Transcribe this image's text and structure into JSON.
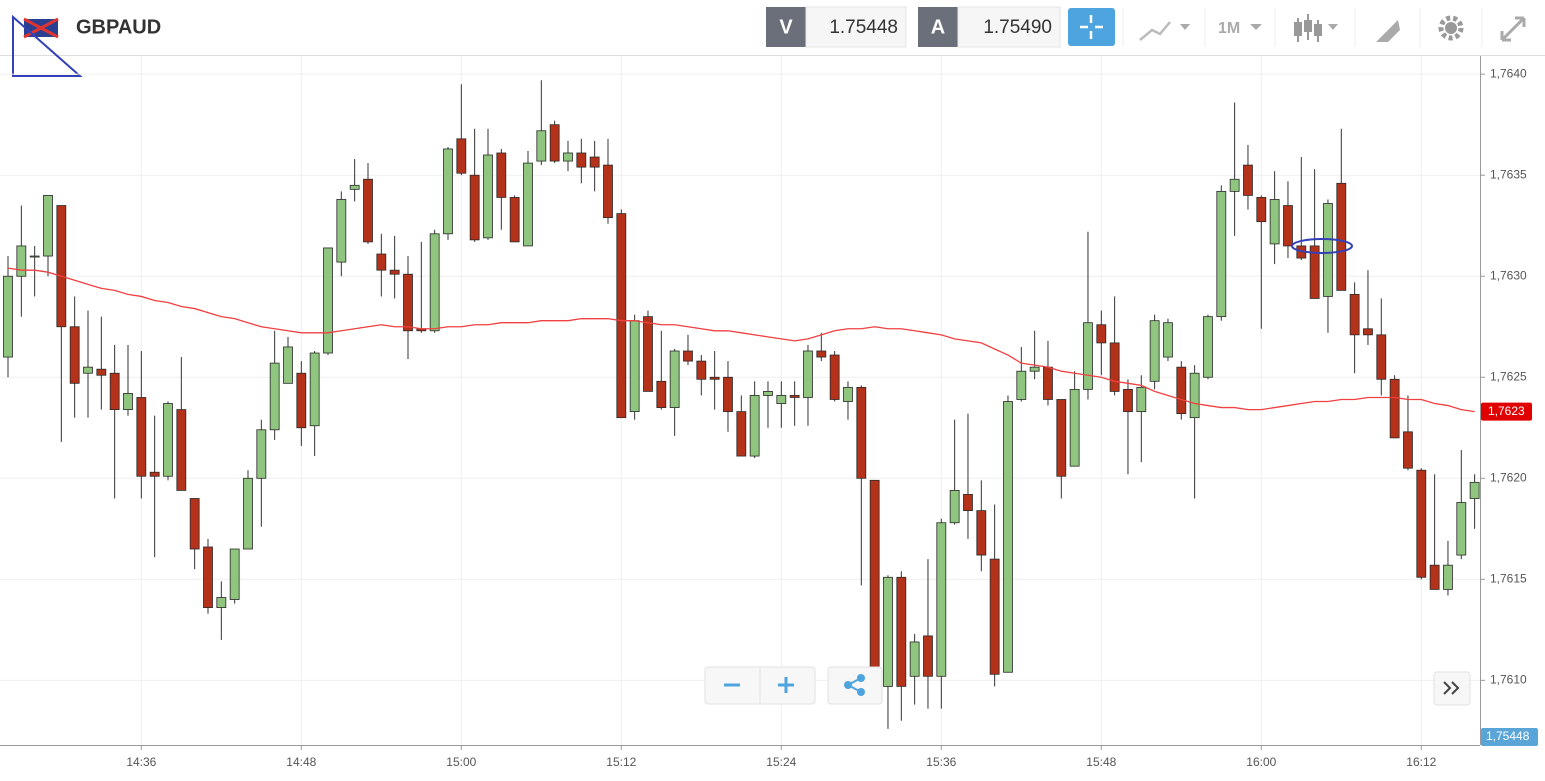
{
  "header": {
    "symbol": "GBPAUD",
    "sell_label": "V",
    "sell_price": "1.75448",
    "buy_label": "A",
    "buy_price": "1.75490",
    "timeframe": "1M"
  },
  "chart_data": {
    "type": "candlestick",
    "categories": [
      null,
      null,
      null,
      null,
      null,
      null,
      null,
      null,
      null,
      null,
      "14:36",
      null,
      null,
      null,
      null,
      null,
      null,
      null,
      null,
      null,
      null,
      null,
      "14:48",
      null,
      null,
      null,
      null,
      null,
      null,
      null,
      null,
      null,
      null,
      null,
      "15:00",
      null,
      null,
      null,
      null,
      null,
      null,
      null,
      null,
      null,
      null,
      null,
      "15:12",
      null,
      null,
      null,
      null,
      null,
      null,
      null,
      null,
      null,
      null,
      null,
      "15:24",
      null,
      null,
      null,
      null,
      null,
      null,
      null,
      null,
      null,
      null,
      null,
      "15:36",
      null,
      null,
      null,
      null,
      null,
      null,
      null,
      null,
      null,
      null,
      null,
      "15:48",
      null,
      null,
      null,
      null,
      null,
      null,
      null,
      null,
      null,
      null,
      null,
      "16:00",
      null,
      null,
      null,
      null,
      null,
      null,
      null,
      null,
      null,
      null,
      null,
      "16:12",
      null,
      null,
      null,
      null
    ],
    "open": [
      1.7626,
      1.763,
      1.7631,
      1.7631,
      1.76335,
      1.76275,
      1.76252,
      1.76254,
      1.76252,
      1.76234,
      1.7624,
      1.76203,
      1.76201,
      1.76234,
      1.7619,
      1.76166,
      1.76136,
      1.7614,
      1.76165,
      1.762,
      1.76224,
      1.76247,
      1.76252,
      1.76226,
      1.76262,
      1.76307,
      1.76343,
      1.76348,
      1.76311,
      1.76303,
      1.76301,
      1.76274,
      1.76273,
      1.76321,
      1.76368,
      1.7635,
      1.76319,
      1.76361,
      1.76339,
      1.76315,
      1.76357,
      1.76375,
      1.76357,
      1.76361,
      1.76359,
      1.76355,
      1.76331,
      1.76233,
      1.7628,
      1.76248,
      1.76235,
      1.76263,
      1.76258,
      1.7625,
      1.7625,
      1.76233,
      1.76211,
      1.76241,
      1.76237,
      1.76241,
      1.7624,
      1.76263,
      1.76261,
      1.76238,
      1.76245,
      1.76199,
      1.76097,
      1.76151,
      1.76102,
      1.76122,
      1.76102,
      1.76178,
      1.76192,
      1.76184,
      1.7616,
      1.76104,
      1.76239,
      1.76253,
      1.76255,
      1.76239,
      1.76206,
      1.76244,
      1.76276,
      1.76267,
      1.76244,
      1.76233,
      1.76248,
      1.7626,
      1.76255,
      1.7623,
      1.7625,
      1.7628,
      1.76342,
      1.76355,
      1.76339,
      1.76316,
      1.76335,
      1.76315,
      1.76315,
      1.7629,
      1.76346,
      1.76291,
      1.76274,
      1.76271,
      1.76249,
      1.76223,
      1.76204,
      1.76157,
      1.76145,
      1.76162,
      1.7619
    ],
    "high": [
      1.7631,
      1.76335,
      1.76315,
      1.7634,
      1.76335,
      1.7629,
      1.76283,
      1.7628,
      1.76266,
      1.76266,
      1.76263,
      1.76231,
      1.76238,
      1.7626,
      1.7619,
      1.7617,
      1.76149,
      1.76165,
      1.76204,
      1.76229,
      1.76273,
      1.7627,
      1.76258,
      1.76263,
      1.76314,
      1.76342,
      1.76358,
      1.76356,
      1.76321,
      1.7632,
      1.7631,
      1.76317,
      1.76323,
      1.76364,
      1.76395,
      1.76373,
      1.76373,
      1.76363,
      1.7634,
      1.76362,
      1.76397,
      1.76377,
      1.76367,
      1.76368,
      1.76367,
      1.76368,
      1.76333,
      1.76281,
      1.76283,
      1.76273,
      1.76264,
      1.76271,
      1.76261,
      1.76263,
      1.76258,
      1.76241,
      1.76248,
      1.76248,
      1.76248,
      1.76248,
      1.76266,
      1.76272,
      1.76263,
      1.76248,
      1.76246,
      1.76199,
      1.76152,
      1.76154,
      1.76123,
      1.7616,
      1.7618,
      1.76229,
      1.76232,
      1.76199,
      1.76187,
      1.76241,
      1.76265,
      1.76273,
      1.76268,
      1.76239,
      1.76253,
      1.76322,
      1.76283,
      1.7629,
      1.76249,
      1.76251,
      1.76281,
      1.76279,
      1.76258,
      1.76256,
      1.76281,
      1.76345,
      1.76386,
      1.76365,
      1.7634,
      1.76352,
      1.76347,
      1.76359,
      1.76353,
      1.76338,
      1.76373,
      1.76297,
      1.76303,
      1.76289,
      1.76251,
      1.76241,
      1.76205,
      1.76202,
      1.76169,
      1.76214,
      1.76202
    ],
    "low": [
      1.7625,
      1.7628,
      1.7629,
      1.763,
      1.76218,
      1.7623,
      1.7623,
      1.76234,
      1.7619,
      1.76231,
      1.7619,
      1.76161,
      1.76199,
      1.76194,
      1.76155,
      1.76133,
      1.7612,
      1.76138,
      1.76165,
      1.76176,
      1.76219,
      1.76247,
      1.76216,
      1.76211,
      1.76261,
      1.763,
      1.76337,
      1.76316,
      1.7629,
      1.76289,
      1.76259,
      1.76272,
      1.76272,
      1.76318,
      1.7635,
      1.76317,
      1.76318,
      1.76323,
      1.76317,
      1.76315,
      1.76355,
      1.76356,
      1.76352,
      1.76346,
      1.76342,
      1.76326,
      1.7623,
      1.76229,
      1.76243,
      1.76234,
      1.76221,
      1.76256,
      1.76241,
      1.76234,
      1.76223,
      1.76211,
      1.7621,
      1.76225,
      1.76225,
      1.76226,
      1.76226,
      1.76258,
      1.76238,
      1.76229,
      1.76147,
      1.761,
      1.76076,
      1.7608,
      1.76088,
      1.76086,
      1.76086,
      1.76177,
      1.7617,
      1.76154,
      1.76097,
      1.76104,
      1.76238,
      1.76249,
      1.76236,
      1.7619,
      1.76206,
      1.76239,
      1.76251,
      1.76241,
      1.76202,
      1.76208,
      1.76244,
      1.76258,
      1.76229,
      1.7619,
      1.76249,
      1.76278,
      1.7632,
      1.76333,
      1.76274,
      1.76306,
      1.76309,
      1.76308,
      1.76289,
      1.76272,
      1.76293,
      1.76252,
      1.76266,
      1.76241,
      1.7622,
      1.76204,
      1.7615,
      1.76145,
      1.76142,
      1.7616,
      1.76175
    ],
    "close": [
      1.763,
      1.76315,
      1.7631,
      1.7634,
      1.76275,
      1.76247,
      1.76255,
      1.76251,
      1.76234,
      1.76242,
      1.76201,
      1.76201,
      1.76237,
      1.76194,
      1.76165,
      1.76136,
      1.76141,
      1.76165,
      1.762,
      1.76224,
      1.76257,
      1.76265,
      1.76225,
      1.76262,
      1.76314,
      1.76338,
      1.76345,
      1.76317,
      1.76303,
      1.76301,
      1.76273,
      1.76273,
      1.76321,
      1.76363,
      1.76351,
      1.76318,
      1.7636,
      1.76339,
      1.76317,
      1.76356,
      1.76372,
      1.76357,
      1.76361,
      1.76354,
      1.76354,
      1.76329,
      1.7623,
      1.76278,
      1.76243,
      1.76235,
      1.76263,
      1.76258,
      1.76249,
      1.76249,
      1.76233,
      1.76211,
      1.76241,
      1.76243,
      1.76241,
      1.7624,
      1.76263,
      1.7626,
      1.76239,
      1.76245,
      1.762,
      1.761,
      1.76151,
      1.76097,
      1.76119,
      1.76102,
      1.76178,
      1.76194,
      1.76184,
      1.76162,
      1.76103,
      1.76238,
      1.76253,
      1.76255,
      1.76239,
      1.76201,
      1.76244,
      1.76277,
      1.76267,
      1.76243,
      1.76233,
      1.76245,
      1.76278,
      1.76277,
      1.76232,
      1.76252,
      1.7628,
      1.76342,
      1.76348,
      1.7634,
      1.76327,
      1.76338,
      1.76315,
      1.76309,
      1.76289,
      1.76336,
      1.76293,
      1.76271,
      1.76271,
      1.76249,
      1.7622,
      1.76205,
      1.76151,
      1.76145,
      1.76157,
      1.76188,
      1.76198
    ],
    "up_color": "#8fc57f",
    "down_color": "#b5321a",
    "ma": {
      "color": "#f04040",
      "label": "1,7623",
      "values": [
        1.76304,
        1.76303,
        1.76303,
        1.76302,
        1.763,
        1.76298,
        1.76296,
        1.76294,
        1.76293,
        1.76291,
        1.7629,
        1.76288,
        1.76287,
        1.76285,
        1.76284,
        1.76282,
        1.7628,
        1.76279,
        1.76277,
        1.76275,
        1.76274,
        1.76273,
        1.76272,
        1.76272,
        1.76272,
        1.76273,
        1.76274,
        1.76275,
        1.76276,
        1.76275,
        1.76275,
        1.76274,
        1.76274,
        1.76275,
        1.76275,
        1.76276,
        1.76276,
        1.76277,
        1.76277,
        1.76277,
        1.76278,
        1.76278,
        1.76278,
        1.76279,
        1.76279,
        1.76279,
        1.76278,
        1.76278,
        1.76277,
        1.76276,
        1.76276,
        1.76275,
        1.76274,
        1.76273,
        1.76273,
        1.76272,
        1.76271,
        1.7627,
        1.76269,
        1.76268,
        1.76269,
        1.76271,
        1.76273,
        1.76274,
        1.76274,
        1.76275,
        1.76274,
        1.76274,
        1.76273,
        1.76272,
        1.76271,
        1.76269,
        1.76268,
        1.76267,
        1.76264,
        1.76261,
        1.76257,
        1.76256,
        1.76255,
        1.76253,
        1.76252,
        1.76251,
        1.7625,
        1.76248,
        1.76247,
        1.76246,
        1.76243,
        1.76241,
        1.76239,
        1.76237,
        1.76236,
        1.76235,
        1.76235,
        1.76234,
        1.76234,
        1.76235,
        1.76236,
        1.76237,
        1.76238,
        1.76238,
        1.76239,
        1.76239,
        1.7624,
        1.7624,
        1.7624,
        1.76239,
        1.76239,
        1.76237,
        1.76236,
        1.76234,
        1.76233
      ]
    },
    "bid_label": "1,75448",
    "ylim": [
      1.76068,
      1.76409
    ],
    "yticks": [
      {
        "value": 1.761,
        "label": "1,7610"
      },
      {
        "value": 1.7615,
        "label": "1,7615"
      },
      {
        "value": 1.762,
        "label": "1,7620"
      },
      {
        "value": 1.7625,
        "label": "1,7625"
      },
      {
        "value": 1.763,
        "label": "1,7630"
      },
      {
        "value": 1.7635,
        "label": "1,7635"
      },
      {
        "value": 1.764,
        "label": "1,7640"
      }
    ],
    "grid": true
  }
}
